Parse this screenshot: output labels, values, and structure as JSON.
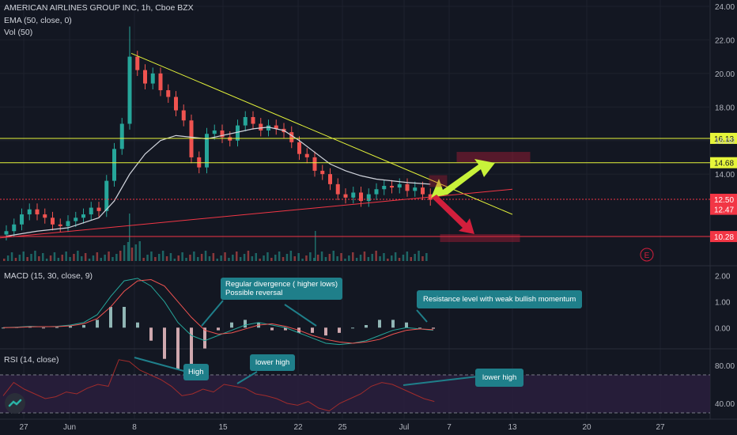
{
  "header": {
    "symbol": "AMERICAN AIRLINES GROUP INC, 1h, Cboe BZX",
    "ema": "EMA (50, close, 0)",
    "vol": "Vol (50)",
    "macd": "MACD (15, 30, close, 9)",
    "rsi": "RSI (14, close)"
  },
  "callouts": {
    "divergence_line1": "Regular divergence ( higher lows)",
    "divergence_line2": "Possible reversal",
    "resistance": "Resistance level with weak bullish momentum",
    "high": "High",
    "lower_high_1": "lower high",
    "lower_high_2": "lower high"
  },
  "earnings_marker": "E",
  "colors": {
    "background": "#131722",
    "up_candle": "#26a69a",
    "down_candle": "#ef5350",
    "ema": "#d1d4dc",
    "resistance_level": "#e6f53a",
    "support_level": "#f23645",
    "trendline_down": "#e6f53a",
    "trendline_up": "#f23645",
    "macd_line": "#26a69a",
    "signal_line": "#ef5350",
    "rsi_line": "#a12c2c",
    "rsi_band": "#2a1f3d",
    "callout": "#1f7f8a",
    "bull_arrow": "#c8f23a",
    "bear_arrow": "#d21f3c"
  },
  "chart_data": [
    {
      "type": "line",
      "panel": "price",
      "ylim": [
        10,
        24
      ],
      "y_ticks": [
        "24.00",
        "22.00",
        "20.00",
        "18.00",
        "16.00",
        "14.00"
      ],
      "x_ticks": [
        "27",
        "Jun",
        "8",
        "15",
        "22",
        "25",
        "Jul",
        "7",
        "13",
        "20",
        "27"
      ],
      "price_levels": [
        {
          "label": "16.13",
          "value": 16.13,
          "kind": "resistance"
        },
        {
          "label": "14.68",
          "value": 14.68,
          "kind": "resistance"
        },
        {
          "label": "12.50",
          "value": 12.5,
          "kind": "support"
        },
        {
          "label": "12.47",
          "value": 12.47,
          "kind": "current"
        },
        {
          "label": "10.28",
          "value": 10.28,
          "kind": "support"
        }
      ],
      "close_series": [
        {
          "x": 0,
          "y": 10.6
        },
        {
          "x": 1,
          "y": 11.0
        },
        {
          "x": 2,
          "y": 11.6
        },
        {
          "x": 3,
          "y": 11.9
        },
        {
          "x": 4,
          "y": 11.6
        },
        {
          "x": 5,
          "y": 11.4
        },
        {
          "x": 6,
          "y": 11.0
        },
        {
          "x": 7,
          "y": 10.9
        },
        {
          "x": 8,
          "y": 11.2
        },
        {
          "x": 9,
          "y": 11.4
        },
        {
          "x": 10,
          "y": 11.6
        },
        {
          "x": 11,
          "y": 12.0
        },
        {
          "x": 12,
          "y": 11.8
        },
        {
          "x": 13,
          "y": 13.6
        },
        {
          "x": 14,
          "y": 15.5
        },
        {
          "x": 15,
          "y": 17.0
        },
        {
          "x": 16,
          "y": 21.0
        },
        {
          "x": 17,
          "y": 20.2
        },
        {
          "x": 18,
          "y": 19.4
        },
        {
          "x": 19,
          "y": 20.0
        },
        {
          "x": 20,
          "y": 19.0
        },
        {
          "x": 21,
          "y": 18.6
        },
        {
          "x": 22,
          "y": 17.8
        },
        {
          "x": 23,
          "y": 17.2
        },
        {
          "x": 24,
          "y": 15.0
        },
        {
          "x": 25,
          "y": 14.4
        },
        {
          "x": 26,
          "y": 16.4
        },
        {
          "x": 27,
          "y": 16.6
        },
        {
          "x": 28,
          "y": 16.2
        },
        {
          "x": 29,
          "y": 16.0
        },
        {
          "x": 30,
          "y": 16.9
        },
        {
          "x": 31,
          "y": 17.4
        },
        {
          "x": 32,
          "y": 17.0
        },
        {
          "x": 33,
          "y": 16.6
        },
        {
          "x": 34,
          "y": 16.9
        },
        {
          "x": 35,
          "y": 16.7
        },
        {
          "x": 36,
          "y": 16.5
        },
        {
          "x": 37,
          "y": 15.9
        },
        {
          "x": 38,
          "y": 15.2
        },
        {
          "x": 39,
          "y": 15.0
        },
        {
          "x": 40,
          "y": 14.2
        },
        {
          "x": 41,
          "y": 14.0
        },
        {
          "x": 42,
          "y": 13.4
        },
        {
          "x": 43,
          "y": 12.8
        },
        {
          "x": 44,
          "y": 12.6
        },
        {
          "x": 45,
          "y": 12.9
        },
        {
          "x": 46,
          "y": 12.4
        },
        {
          "x": 47,
          "y": 12.8
        },
        {
          "x": 48,
          "y": 13.1
        },
        {
          "x": 49,
          "y": 13.3
        },
        {
          "x": 50,
          "y": 13.2
        },
        {
          "x": 51,
          "y": 13.4
        },
        {
          "x": 52,
          "y": 13.0
        },
        {
          "x": 53,
          "y": 13.2
        },
        {
          "x": 54,
          "y": 12.8
        },
        {
          "x": 55,
          "y": 12.47
        }
      ],
      "ema_series": [
        {
          "x": 0,
          "y": 10.3
        },
        {
          "x": 4,
          "y": 10.6
        },
        {
          "x": 8,
          "y": 10.8
        },
        {
          "x": 12,
          "y": 11.4
        },
        {
          "x": 14,
          "y": 12.4
        },
        {
          "x": 16,
          "y": 14.0
        },
        {
          "x": 18,
          "y": 15.2
        },
        {
          "x": 20,
          "y": 16.0
        },
        {
          "x": 22,
          "y": 16.3
        },
        {
          "x": 24,
          "y": 16.2
        },
        {
          "x": 26,
          "y": 16.1
        },
        {
          "x": 28,
          "y": 16.3
        },
        {
          "x": 30,
          "y": 16.5
        },
        {
          "x": 32,
          "y": 16.7
        },
        {
          "x": 34,
          "y": 16.8
        },
        {
          "x": 36,
          "y": 16.6
        },
        {
          "x": 38,
          "y": 16.0
        },
        {
          "x": 40,
          "y": 15.3
        },
        {
          "x": 42,
          "y": 14.6
        },
        {
          "x": 44,
          "y": 14.2
        },
        {
          "x": 46,
          "y": 13.9
        },
        {
          "x": 48,
          "y": 13.7
        },
        {
          "x": 50,
          "y": 13.6
        },
        {
          "x": 52,
          "y": 13.5
        },
        {
          "x": 55,
          "y": 13.4
        }
      ]
    },
    {
      "type": "line",
      "panel": "macd",
      "ylim": [
        -0.6,
        2.2
      ],
      "y_ticks": [
        "2.00",
        "1.00",
        "0.00"
      ],
      "series": [
        {
          "values": [
            0.0,
            0.02,
            0.05,
            0.03,
            0.05,
            0.1,
            0.2,
            0.5,
            1.2,
            1.8,
            1.9,
            1.6,
            1.0,
            0.2,
            -0.3,
            -0.5,
            -0.3,
            -0.1,
            0.1,
            0.2,
            0.1,
            0.0,
            -0.2,
            -0.4,
            -0.6,
            -0.65,
            -0.6,
            -0.5,
            -0.3,
            -0.1,
            0.0,
            -0.05,
            -0.1
          ]
        },
        {
          "values": [
            0.0,
            0.01,
            0.03,
            0.04,
            0.04,
            0.07,
            0.15,
            0.35,
            0.8,
            1.4,
            1.8,
            1.85,
            1.6,
            1.0,
            0.4,
            -0.1,
            -0.25,
            -0.2,
            -0.05,
            0.1,
            0.15,
            0.05,
            -0.1,
            -0.3,
            -0.45,
            -0.55,
            -0.6,
            -0.55,
            -0.45,
            -0.25,
            -0.1,
            -0.05,
            -0.08
          ]
        }
      ]
    },
    {
      "type": "line",
      "panel": "rsi",
      "ylim": [
        30,
        90
      ],
      "y_ticks": [
        "80.00",
        "40.00"
      ],
      "bands": [
        70,
        30
      ],
      "series": [
        {
          "values": [
            48,
            62,
            55,
            50,
            45,
            47,
            52,
            50,
            56,
            60,
            58,
            86,
            84,
            75,
            70,
            65,
            58,
            48,
            50,
            55,
            52,
            60,
            58,
            56,
            50,
            48,
            45,
            40,
            38,
            42,
            35,
            32,
            40,
            45,
            50,
            58,
            62,
            60,
            55,
            50,
            45,
            42
          ]
        }
      ]
    }
  ]
}
